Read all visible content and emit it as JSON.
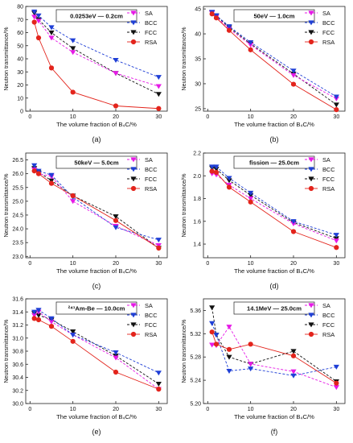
{
  "chart_data": [
    {
      "panel": "(a)",
      "type": "line",
      "title": "0.0253eV — 0.2cm",
      "xlabel": "The volume fraction of B₄C/%",
      "ylabel": "Neutron transmittance/%",
      "x": [
        1,
        2,
        5,
        10,
        20,
        30
      ],
      "xlim": [
        -1,
        32
      ],
      "ylim": [
        0,
        80
      ],
      "xticks": [
        0,
        10,
        20,
        30
      ],
      "yticks": [
        0,
        10,
        20,
        30,
        40,
        50,
        60,
        70,
        80
      ],
      "ytick_labels": [
        "0",
        "10",
        "20",
        "30",
        "40",
        "50",
        "60",
        "70",
        "80"
      ],
      "series": [
        {
          "name": "SA",
          "color": "#e619e6",
          "dashed": true,
          "values": [
            72,
            69,
            56,
            45,
            29,
            19
          ]
        },
        {
          "name": "BCC",
          "color": "#1f3fd6",
          "dashed": true,
          "values": [
            76,
            73,
            64,
            54,
            39,
            26
          ]
        },
        {
          "name": "FCC",
          "color": "#111111",
          "dashed": true,
          "values": [
            75,
            70,
            60,
            48,
            29,
            13
          ]
        },
        {
          "name": "RSA",
          "color": "#e3241c",
          "dashed": false,
          "values": [
            68,
            56,
            33,
            14.5,
            4,
            2
          ]
        }
      ]
    },
    {
      "panel": "(b)",
      "type": "line",
      "title": "50eV — 1.0cm",
      "xlabel": "The volume fraction of B₄C/%",
      "ylabel": "Neutron transmittance/%",
      "x": [
        1,
        2,
        5,
        10,
        20,
        30
      ],
      "xlim": [
        -1,
        32
      ],
      "ylim": [
        24.5,
        45.5
      ],
      "xticks": [
        0,
        10,
        20,
        30
      ],
      "yticks": [
        25,
        30,
        35,
        40,
        45
      ],
      "ytick_labels": [
        "25",
        "30",
        "35",
        "40",
        "45"
      ],
      "series": [
        {
          "name": "SA",
          "color": "#e619e6",
          "dashed": true,
          "values": [
            44.2,
            43.4,
            41.0,
            37.8,
            31.7,
            27.0
          ]
        },
        {
          "name": "BCC",
          "color": "#1f3fd6",
          "dashed": true,
          "values": [
            44.4,
            43.7,
            41.5,
            38.3,
            32.6,
            27.4
          ]
        },
        {
          "name": "FCC",
          "color": "#111111",
          "dashed": true,
          "values": [
            44.3,
            43.6,
            41.3,
            38.0,
            32.0,
            25.8
          ]
        },
        {
          "name": "RSA",
          "color": "#e3241c",
          "dashed": false,
          "values": [
            44.0,
            43.2,
            40.7,
            36.8,
            29.9,
            24.8
          ]
        }
      ]
    },
    {
      "panel": "(c)",
      "type": "line",
      "title": "50keV — 5.0cm",
      "xlabel": "The volume fraction of B₄C/%",
      "ylabel": "Neutron transmittance/%",
      "x": [
        1,
        2,
        5,
        10,
        20,
        30
      ],
      "xlim": [
        -1,
        32
      ],
      "ylim": [
        22.95,
        26.75
      ],
      "xticks": [
        0,
        10,
        20,
        30
      ],
      "yticks": [
        23.0,
        23.5,
        24.0,
        24.5,
        25.0,
        25.5,
        26.0,
        26.5
      ],
      "ytick_labels": [
        "23.0",
        "23.5",
        "24.0",
        "24.5",
        "25.0",
        "25.5",
        "26.0",
        "26.5"
      ],
      "series": [
        {
          "name": "SA",
          "color": "#e619e6",
          "dashed": true,
          "values": [
            26.15,
            26.0,
            25.9,
            25.0,
            24.1,
            23.4
          ]
        },
        {
          "name": "BCC",
          "color": "#1f3fd6",
          "dashed": true,
          "values": [
            26.3,
            26.1,
            25.95,
            25.15,
            24.05,
            23.6
          ]
        },
        {
          "name": "FCC",
          "color": "#111111",
          "dashed": true,
          "values": [
            26.2,
            26.05,
            25.75,
            25.2,
            24.45,
            23.3
          ]
        },
        {
          "name": "RSA",
          "color": "#e3241c",
          "dashed": false,
          "values": [
            26.1,
            26.0,
            25.65,
            25.2,
            24.3,
            23.3
          ]
        }
      ]
    },
    {
      "panel": "(d)",
      "type": "line",
      "title": "fission — 25.0cm",
      "xlabel": "The volume fraction of B₄C/%",
      "ylabel": "Neutron transmittance/%",
      "x": [
        1,
        2,
        5,
        10,
        20,
        30
      ],
      "xlim": [
        -1,
        32
      ],
      "ylim": [
        1.28,
        2.2
      ],
      "xticks": [
        0,
        10,
        20,
        30
      ],
      "yticks": [
        1.4,
        1.6,
        1.8,
        2.0,
        2.2
      ],
      "ytick_labels": [
        "1.4",
        "1.6",
        "1.8",
        "2.0",
        "2.2"
      ],
      "series": [
        {
          "name": "SA",
          "color": "#e619e6",
          "dashed": true,
          "values": [
            2.02,
            2.01,
            1.92,
            1.8,
            1.58,
            1.43
          ]
        },
        {
          "name": "BCC",
          "color": "#1f3fd6",
          "dashed": true,
          "values": [
            2.08,
            2.08,
            1.98,
            1.85,
            1.6,
            1.48
          ]
        },
        {
          "name": "FCC",
          "color": "#111111",
          "dashed": true,
          "values": [
            2.07,
            2.06,
            1.96,
            1.83,
            1.59,
            1.45
          ]
        },
        {
          "name": "RSA",
          "color": "#e3241c",
          "dashed": false,
          "values": [
            2.04,
            2.03,
            1.9,
            1.77,
            1.51,
            1.37
          ]
        }
      ]
    },
    {
      "panel": "(e)",
      "type": "line",
      "title": "²⁴¹Am-Be — 10.0cm",
      "xlabel": "The volume fraction of B₄C/%",
      "ylabel": "Neutron transmittance/%",
      "x": [
        1,
        2,
        5,
        10,
        20,
        30
      ],
      "xlim": [
        -1,
        32
      ],
      "ylim": [
        30.0,
        31.6
      ],
      "xticks": [
        0,
        10,
        20,
        30
      ],
      "yticks": [
        30.0,
        30.2,
        30.4,
        30.6,
        30.8,
        31.0,
        31.2,
        31.4,
        31.6
      ],
      "ytick_labels": [
        "30.0",
        "30.2",
        "30.4",
        "30.6",
        "30.8",
        "31.0",
        "31.2",
        "31.4",
        "31.6"
      ],
      "series": [
        {
          "name": "SA",
          "color": "#e619e6",
          "dashed": true,
          "values": [
            31.35,
            31.4,
            31.25,
            31.05,
            30.7,
            30.22
          ]
        },
        {
          "name": "BCC",
          "color": "#1f3fd6",
          "dashed": true,
          "values": [
            31.4,
            31.43,
            31.3,
            31.05,
            30.78,
            30.47
          ]
        },
        {
          "name": "FCC",
          "color": "#111111",
          "dashed": true,
          "values": [
            31.38,
            31.35,
            31.28,
            31.1,
            30.73,
            30.3
          ]
        },
        {
          "name": "RSA",
          "color": "#e3241c",
          "dashed": false,
          "values": [
            31.3,
            31.28,
            31.18,
            30.95,
            30.48,
            30.22
          ]
        }
      ]
    },
    {
      "panel": "(f)",
      "type": "line",
      "title": "14.1MeV — 25.0cm",
      "xlabel": "The volume fraction of B₄C/%",
      "ylabel": "Neutron transmittance/%",
      "x": [
        1,
        2,
        5,
        10,
        20,
        30
      ],
      "xlim": [
        -1,
        32
      ],
      "ylim": [
        5.2,
        5.38
      ],
      "xticks": [
        0,
        10,
        20,
        30
      ],
      "yticks": [
        5.2,
        5.24,
        5.28,
        5.32,
        5.36
      ],
      "ytick_labels": [
        "5.20",
        "5.24",
        "5.28",
        "5.32",
        "5.36"
      ],
      "series": [
        {
          "name": "SA",
          "color": "#e619e6",
          "dashed": true,
          "values": [
            5.301,
            5.3,
            5.332,
            5.268,
            5.255,
            5.228
          ]
        },
        {
          "name": "BCC",
          "color": "#1f3fd6",
          "dashed": true,
          "values": [
            5.338,
            5.318,
            5.256,
            5.26,
            5.248,
            5.263
          ]
        },
        {
          "name": "FCC",
          "color": "#111111",
          "dashed": true,
          "values": [
            5.365,
            5.318,
            5.28,
            5.268,
            5.29,
            5.238
          ]
        },
        {
          "name": "RSA",
          "color": "#e3241c",
          "dashed": false,
          "values": [
            5.323,
            5.302,
            5.293,
            5.302,
            5.282,
            5.235
          ]
        }
      ]
    }
  ]
}
